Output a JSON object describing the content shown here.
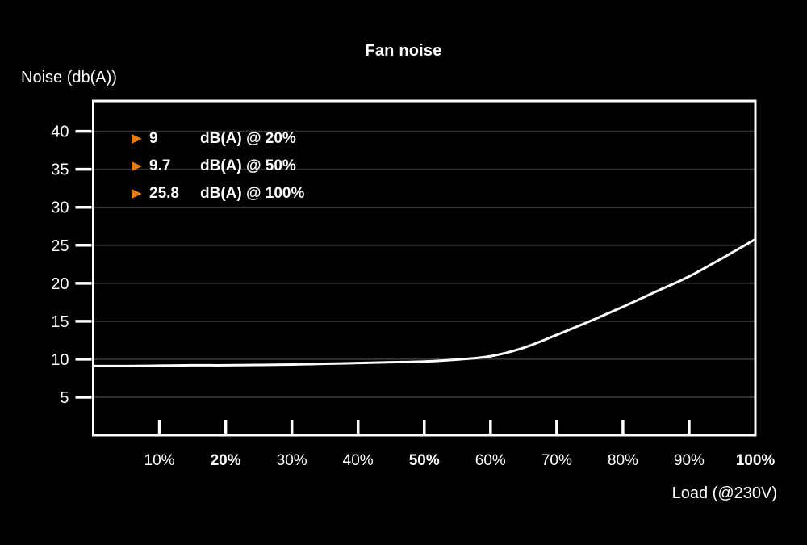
{
  "colors": {
    "background": "#000000",
    "foreground": "#ffffff",
    "grid": "#333333",
    "curve": "#ffffff",
    "accent_orange": "#E87D0D"
  },
  "chart_data": {
    "type": "line",
    "title": "Fan noise",
    "xlabel": "Load (@230V)",
    "ylabel": "Noise (db(A))",
    "xlim": [
      0,
      100
    ],
    "ylim": [
      0,
      44
    ],
    "grid": "horizontal-only",
    "y_ticks": [
      5,
      10,
      15,
      20,
      25,
      30,
      35,
      40
    ],
    "x_ticks": [
      {
        "value": 10,
        "label": "10%",
        "bold": false
      },
      {
        "value": 20,
        "label": "20%",
        "bold": true
      },
      {
        "value": 30,
        "label": "30%",
        "bold": false
      },
      {
        "value": 40,
        "label": "40%",
        "bold": false
      },
      {
        "value": 50,
        "label": "50%",
        "bold": true
      },
      {
        "value": 60,
        "label": "60%",
        "bold": false
      },
      {
        "value": 70,
        "label": "70%",
        "bold": false
      },
      {
        "value": 80,
        "label": "80%",
        "bold": false
      },
      {
        "value": 90,
        "label": "90%",
        "bold": false
      },
      {
        "value": 100,
        "label": "100%",
        "bold": true
      }
    ],
    "series": [
      {
        "name": "Fan noise",
        "color": "#ffffff",
        "x": [
          0,
          5,
          10,
          15,
          20,
          25,
          30,
          35,
          40,
          45,
          50,
          55,
          60,
          65,
          70,
          75,
          80,
          85,
          90,
          95,
          100
        ],
        "y": [
          9.1,
          9.1,
          9.15,
          9.2,
          9.2,
          9.25,
          9.3,
          9.4,
          9.5,
          9.6,
          9.7,
          9.95,
          10.4,
          11.5,
          13.2,
          15.0,
          16.9,
          18.9,
          20.9,
          23.3,
          25.8
        ]
      }
    ],
    "legend": {
      "position": "top-left",
      "marker": "play-triangle",
      "marker_color": "#E87D0D",
      "items": [
        {
          "value": "9",
          "label": "dB(A) @ 20%"
        },
        {
          "value": "9.7",
          "label": "dB(A) @ 50%"
        },
        {
          "value": "25.8",
          "label": "dB(A) @ 100%"
        }
      ]
    }
  }
}
